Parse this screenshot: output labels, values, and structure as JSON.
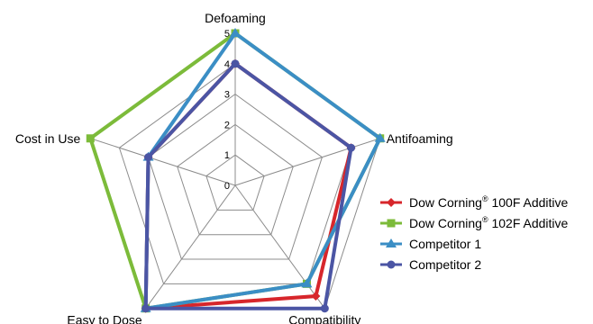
{
  "chart_data": {
    "type": "radar",
    "axes": [
      "Defoaming",
      "Antifoaming",
      "Compatibility",
      "Easy to Dose",
      "Cost in Use"
    ],
    "rlim": [
      0,
      5
    ],
    "ticks": [
      "0",
      "1",
      "2",
      "3",
      "4",
      "5"
    ],
    "grid": true,
    "legend_position": "right",
    "series": [
      {
        "name": "Dow Corning® 100F Additive",
        "label_base": "Dow Corning",
        "label_tail": " 100F Additive",
        "values": [
          4,
          4,
          4.5,
          5,
          3
        ],
        "color": "#d7262b",
        "marker": "diamond"
      },
      {
        "name": "Dow Corning® 102F Additive",
        "label_base": "Dow Corning",
        "label_tail": " 102F Additive",
        "values": [
          5,
          5,
          4,
          5,
          5
        ],
        "color": "#7cbb3a",
        "marker": "square"
      },
      {
        "name": "Competitor 1",
        "label_base": "Competitor 1",
        "label_tail": "",
        "values": [
          5,
          5,
          4,
          5,
          3
        ],
        "color": "#3b8ec5",
        "marker": "triangle"
      },
      {
        "name": "Competitor 2",
        "label_base": "Competitor 2",
        "label_tail": "",
        "values": [
          4,
          4,
          5,
          5,
          3
        ],
        "color": "#4b55a4",
        "marker": "circle"
      }
    ]
  }
}
